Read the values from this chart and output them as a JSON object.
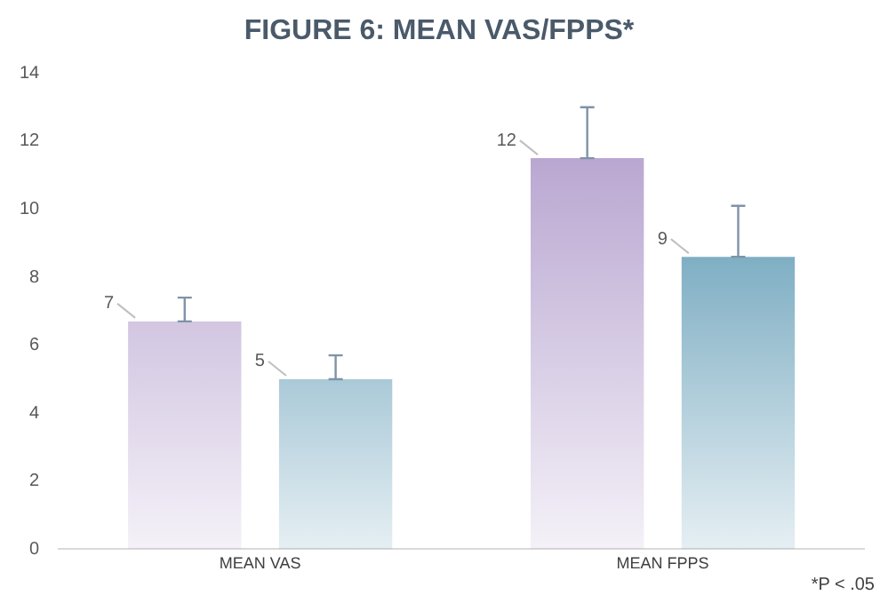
{
  "chart_data": {
    "type": "bar",
    "title": "FIGURE 6: MEAN VAS/FPPS*",
    "categories": [
      "MEAN VAS",
      "MEAN FPPS"
    ],
    "series": [
      {
        "color": "#ad97c9",
        "values": [
          6.7,
          11.5
        ],
        "errors": [
          [
            6.7,
            7.4
          ],
          [
            11.5,
            13.0
          ]
        ],
        "value_labels": [
          "7",
          "12"
        ]
      },
      {
        "color": "#3f86a6",
        "values": [
          5.0,
          8.6
        ],
        "errors": [
          [
            5.0,
            5.7
          ],
          [
            8.6,
            10.1
          ]
        ],
        "value_labels": [
          "5",
          "9"
        ]
      }
    ],
    "ylim": [
      0,
      14
    ],
    "yticks": [
      0,
      2,
      4,
      6,
      8,
      10,
      12,
      14
    ],
    "grid": false,
    "legend": false,
    "annotations": [
      "*P < .05"
    ]
  }
}
